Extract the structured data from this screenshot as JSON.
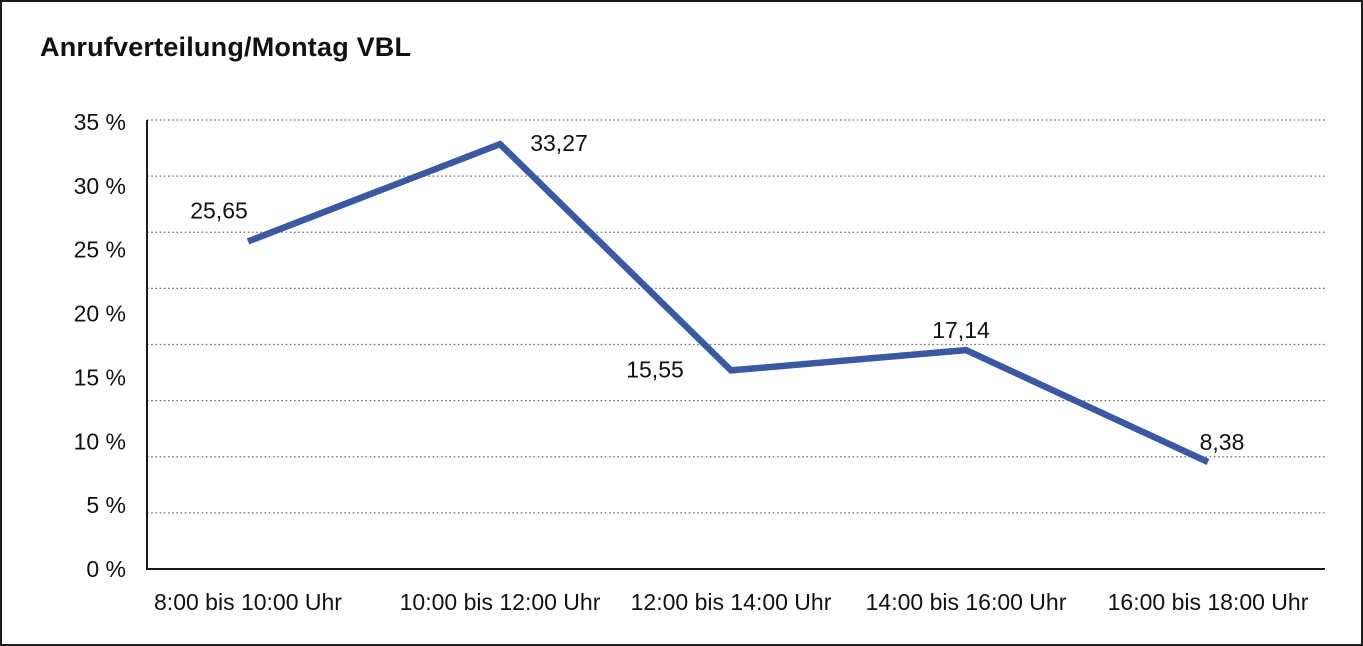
{
  "chart_data": {
    "type": "line",
    "title": "Anrufverteilung/Montag VBL",
    "categories": [
      "8:00 bis 10:00 Uhr",
      "10:00 bis 12:00 Uhr",
      "12:00 bis 14:00 Uhr",
      "14:00 bis 16:00 Uhr",
      "16:00 bis 18:00 Uhr"
    ],
    "values": [
      25.65,
      33.27,
      15.55,
      17.14,
      8.38
    ],
    "data_labels": [
      "25,65",
      "33,27",
      "15,55",
      "17,14",
      "8,38"
    ],
    "xlabel": "",
    "ylabel": "",
    "ylim": [
      0,
      35
    ],
    "ytick_step": 5,
    "ytick_labels": [
      "0 %",
      "5 %",
      "10 %",
      "15 %",
      "20 %",
      "25 %",
      "30 %",
      "35 %"
    ],
    "gridline_divisions": 8,
    "grid_style": "dotted-horizontal",
    "legend": "none",
    "colors": {
      "line": "#3B59A3",
      "text": "#111111",
      "grid": "#6f6f6f",
      "axis": "#1c1c1c",
      "background": "#ffffff",
      "border": "#1c1c1c"
    }
  }
}
